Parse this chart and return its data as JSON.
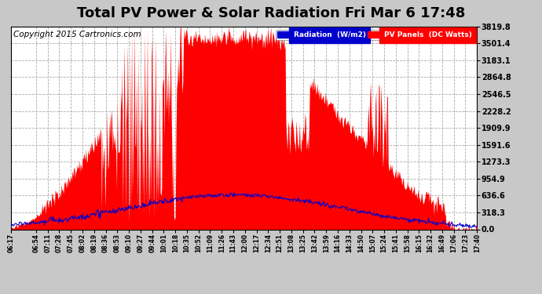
{
  "title": "Total PV Power & Solar Radiation Fri Mar 6 17:48",
  "copyright": "Copyright 2015 Cartronics.com",
  "yticks": [
    0.0,
    318.3,
    636.6,
    954.9,
    1273.3,
    1591.6,
    1909.9,
    2228.2,
    2546.5,
    2864.8,
    3183.1,
    3501.4,
    3819.8
  ],
  "ymax": 3819.8,
  "ymin": 0.0,
  "legend_radiation_label": "Radiation  (W/m2)",
  "legend_pv_label": "PV Panels  (DC Watts)",
  "legend_radiation_bg": "#0000cc",
  "legend_pv_bg": "#ff0000",
  "pv_color": "#ff0000",
  "radiation_color": "#0000cc",
  "bg_color": "#c8c8c8",
  "plot_bg_color": "#ffffff",
  "grid_color": "#aaaaaa",
  "title_fontsize": 13,
  "copyright_fontsize": 7.5,
  "xtick_labels": [
    "06:17",
    "06:54",
    "07:11",
    "07:28",
    "07:45",
    "08:02",
    "08:19",
    "08:36",
    "08:53",
    "09:10",
    "09:27",
    "09:44",
    "10:01",
    "10:18",
    "10:35",
    "10:52",
    "11:09",
    "11:26",
    "11:43",
    "12:00",
    "12:17",
    "12:34",
    "12:51",
    "13:08",
    "13:25",
    "13:42",
    "13:59",
    "14:16",
    "14:33",
    "14:50",
    "15:07",
    "15:24",
    "15:41",
    "15:58",
    "16:15",
    "16:32",
    "16:49",
    "17:06",
    "17:23",
    "17:40"
  ]
}
